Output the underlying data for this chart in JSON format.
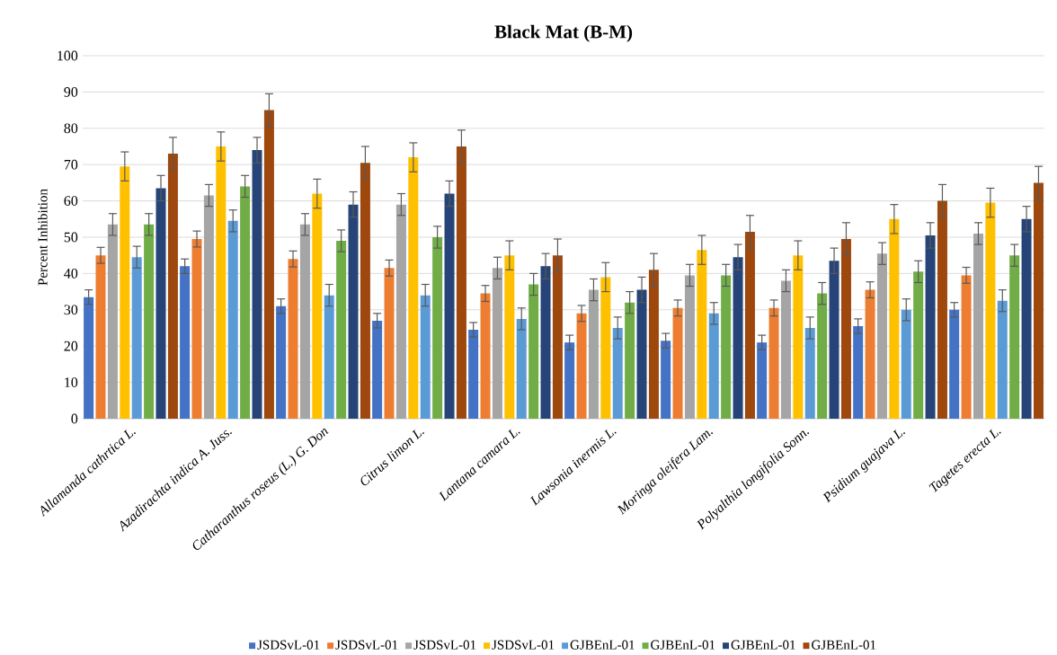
{
  "chart_data": {
    "type": "bar",
    "title": "Black Mat (B-M)",
    "ylabel": "Percent Inhibition",
    "categories": [
      "Allamanda cathrtica L.",
      "Azadirachta indica A. Juss.",
      "Catharanthus roseus (L.) G. Don",
      "Citrus limon L.",
      "Lantana camara L.",
      "Lawsonia inermis L.",
      "Moringa oleifera Lam.",
      "Polyalthia longifolia Sonn.",
      "Psidium guajava L.",
      "Tagetes erecta L."
    ],
    "series": [
      {
        "name": "JSDSvL-01",
        "color": "#4472c4",
        "values": [
          33.5,
          42,
          31,
          27,
          24.5,
          21,
          21.5,
          21,
          25.5,
          30
        ],
        "errors": [
          2,
          2,
          2,
          2,
          2,
          2,
          2,
          2,
          2,
          2
        ]
      },
      {
        "name": "JSDSvL-01",
        "color": "#ed7d31",
        "values": [
          45,
          49.5,
          44,
          41.5,
          34.5,
          29,
          30.5,
          30.5,
          35.5,
          39.5
        ],
        "errors": [
          2.2,
          2.2,
          2.2,
          2.2,
          2.2,
          2.2,
          2.2,
          2.2,
          2.2,
          2.2
        ]
      },
      {
        "name": "JSDSvL-01",
        "color": "#a5a5a5",
        "values": [
          53.5,
          61.5,
          53.5,
          59,
          41.5,
          35.5,
          39.5,
          38,
          45.5,
          51
        ],
        "errors": [
          3,
          3,
          3,
          3,
          3,
          3,
          3,
          3,
          3,
          3
        ]
      },
      {
        "name": "JSDSvL-01",
        "color": "#ffc000",
        "values": [
          69.5,
          75,
          62,
          72,
          45,
          39,
          46.5,
          45,
          55,
          59.5
        ],
        "errors": [
          4,
          4,
          4,
          4,
          4,
          4,
          4,
          4,
          4,
          4
        ]
      },
      {
        "name": "GJBEnL-01",
        "color": "#5b9bd5",
        "values": [
          44.5,
          54.5,
          34,
          34,
          27.5,
          25,
          29,
          25,
          30,
          32.5
        ],
        "errors": [
          3,
          3,
          3,
          3,
          3,
          3,
          3,
          3,
          3,
          3
        ]
      },
      {
        "name": "GJBEnL-01",
        "color": "#70ad47",
        "values": [
          53.5,
          64,
          49,
          50,
          37,
          32,
          39.5,
          34.5,
          40.5,
          45
        ],
        "errors": [
          3,
          3,
          3,
          3,
          3,
          3,
          3,
          3,
          3,
          3
        ]
      },
      {
        "name": "GJBEnL-01",
        "color": "#264478",
        "values": [
          63.5,
          74,
          59,
          62,
          42,
          35.5,
          44.5,
          43.5,
          50.5,
          55
        ],
        "errors": [
          3.5,
          3.5,
          3.5,
          3.5,
          3.5,
          3.5,
          3.5,
          3.5,
          3.5,
          3.5
        ]
      },
      {
        "name": "GJBEnL-01",
        "color": "#9e480e",
        "values": [
          73,
          85,
          70.5,
          75,
          45,
          41,
          51.5,
          49.5,
          60,
          65
        ],
        "errors": [
          4.5,
          4.5,
          4.5,
          4.5,
          4.5,
          4.5,
          4.5,
          4.5,
          4.5,
          4.5
        ]
      }
    ],
    "ylim": [
      0,
      100
    ],
    "yticks": [
      0,
      10,
      20,
      30,
      40,
      50,
      60,
      70,
      80,
      90,
      100
    ],
    "grid": "y",
    "legend": "bottom"
  }
}
